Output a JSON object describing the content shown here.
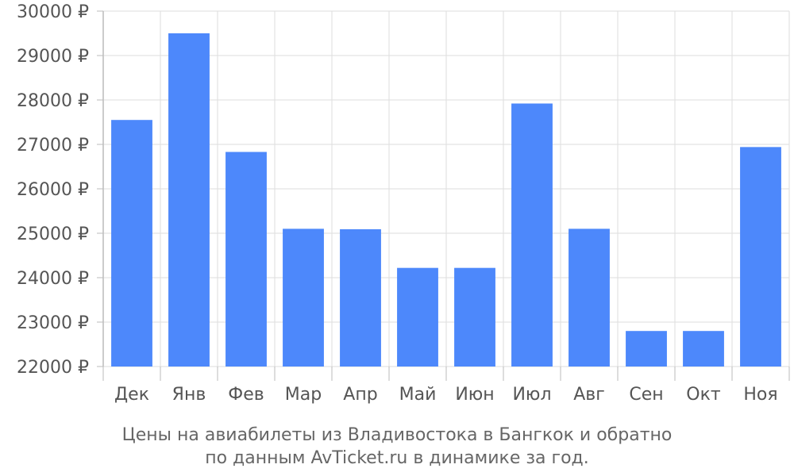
{
  "chart_data": {
    "type": "bar",
    "categories": [
      "Дек",
      "Янв",
      "Фев",
      "Мар",
      "Апр",
      "Май",
      "Июн",
      "Июл",
      "Авг",
      "Сен",
      "Окт",
      "Ноя"
    ],
    "values": [
      27550,
      29500,
      26830,
      25100,
      25090,
      24220,
      24220,
      27920,
      25100,
      22800,
      22800,
      26940
    ],
    "ylim": [
      22000,
      30000
    ],
    "yticks": [
      22000,
      23000,
      24000,
      25000,
      26000,
      27000,
      28000,
      29000,
      30000
    ],
    "tick_suffix": " ₽",
    "grid": true,
    "colors": {
      "bar": "#4d88fb",
      "grid": "#dddddd",
      "axis": "#bbbbbb",
      "text": "#555555"
    },
    "caption_lines": [
      "Цены на авиабилеты из Владивостока в Бангкок и обратно",
      "по данным AvTicket.ru в динамике за год."
    ]
  }
}
